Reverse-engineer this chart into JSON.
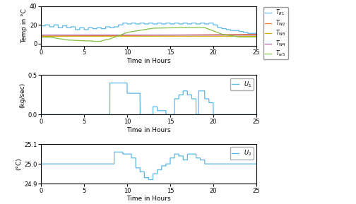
{
  "fig_width": 5.04,
  "fig_height": 2.89,
  "dpi": 100,
  "subplot1": {
    "ylabel": "Temp in °C",
    "xlabel": "Time in Hours",
    "xlim": [
      0,
      25
    ],
    "ylim": [
      -2,
      40
    ],
    "yticks": [
      0,
      20,
      40
    ],
    "xticks": [
      0,
      5,
      10,
      15,
      20,
      25
    ],
    "line_colors": [
      "#5bb8e8",
      "#f07830",
      "#d4aa00",
      "#b060b0",
      "#80c040"
    ]
  },
  "subplot2": {
    "ylabel": "(kg/sec)",
    "xlabel": "Time in Hours",
    "xlim": [
      0,
      25
    ],
    "ylim": [
      0,
      0.5
    ],
    "yticks": [
      0,
      0.5
    ],
    "xticks": [
      0,
      5,
      10,
      15,
      20,
      25
    ],
    "line_color": "#5bb8e8"
  },
  "subplot3": {
    "ylabel": "(°C)",
    "xlabel": "Time in Hours",
    "xlim": [
      0,
      25
    ],
    "ylim": [
      24.9,
      25.1
    ],
    "yticks": [
      24.9,
      25.0,
      25.1
    ],
    "xticks": [
      0,
      5,
      10,
      15,
      20,
      25
    ],
    "line_color": "#5bb8e8"
  },
  "bg_color": "#ffffff",
  "axes_bg_color": "#ffffff",
  "grid_color": "#e0e0e0"
}
